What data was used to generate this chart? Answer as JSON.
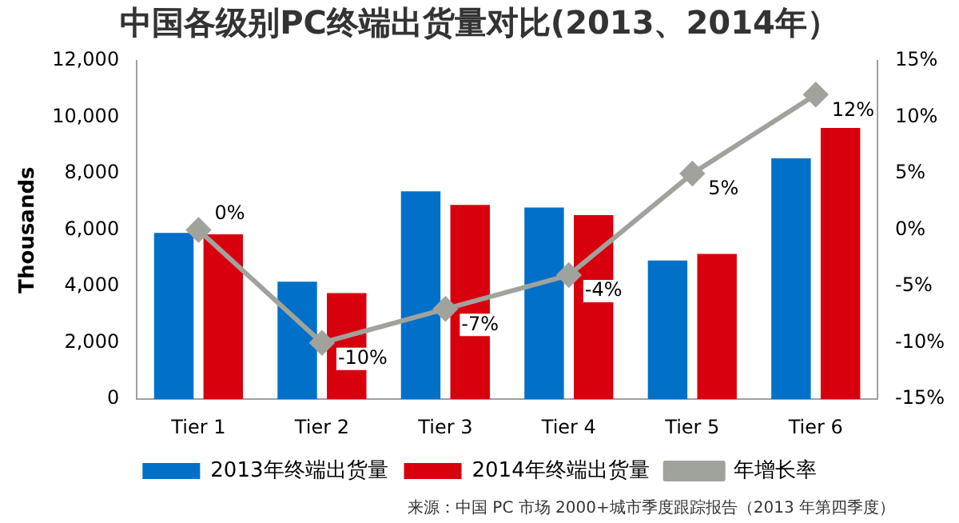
{
  "chart_data": {
    "type": "bar",
    "title": "中国各级别PC终端出货量对比(2013、2014年）",
    "ylabel": "Thousands",
    "categories": [
      "Tier 1",
      "Tier 2",
      "Tier 3",
      "Tier 4",
      "Tier 5",
      "Tier 6"
    ],
    "series": [
      {
        "name": "2013年终端出货量",
        "color": "#0070c8",
        "values": [
          5900,
          4170,
          7370,
          6800,
          4920,
          8540
        ]
      },
      {
        "name": "2014年终端出货量",
        "color": "#d9000d",
        "values": [
          5850,
          3760,
          6890,
          6530,
          5150,
          9620
        ]
      },
      {
        "name": "年增长率",
        "type": "line",
        "axis": "y2",
        "color": "#a0a39c",
        "marker": "diamond",
        "values": [
          0,
          -10,
          -7,
          -4,
          5,
          12
        ],
        "value_labels": [
          "0%",
          "-10%",
          "-7%",
          "-4%",
          "5%",
          "12%"
        ]
      }
    ],
    "ylim": [
      0,
      12000
    ],
    "yticks": [
      0,
      {
        "value": 2000,
        "label": "2,000"
      },
      {
        "value": 4000,
        "label": "4,000"
      },
      {
        "value": 6000,
        "label": "6,000"
      },
      {
        "value": 8000,
        "label": "8,000"
      },
      {
        "value": 10000,
        "label": "10,000"
      },
      {
        "value": 12000,
        "label": "12,000"
      }
    ],
    "y2lim": [
      -15,
      15
    ],
    "y2ticks": [
      {
        "value": -15,
        "label": "-15%"
      },
      {
        "value": -10,
        "label": "-10%"
      },
      {
        "value": -5,
        "label": "-5%"
      },
      {
        "value": 0,
        "label": "0%"
      },
      {
        "value": 5,
        "label": "5%"
      },
      {
        "value": 10,
        "label": "10%"
      },
      {
        "value": 15,
        "label": "15%"
      }
    ],
    "grid": false,
    "legend": "bottom",
    "annotations": [
      "来源：中国 PC 市场 2000+城市季度跟踪报告（2013 年第四季度）"
    ]
  }
}
